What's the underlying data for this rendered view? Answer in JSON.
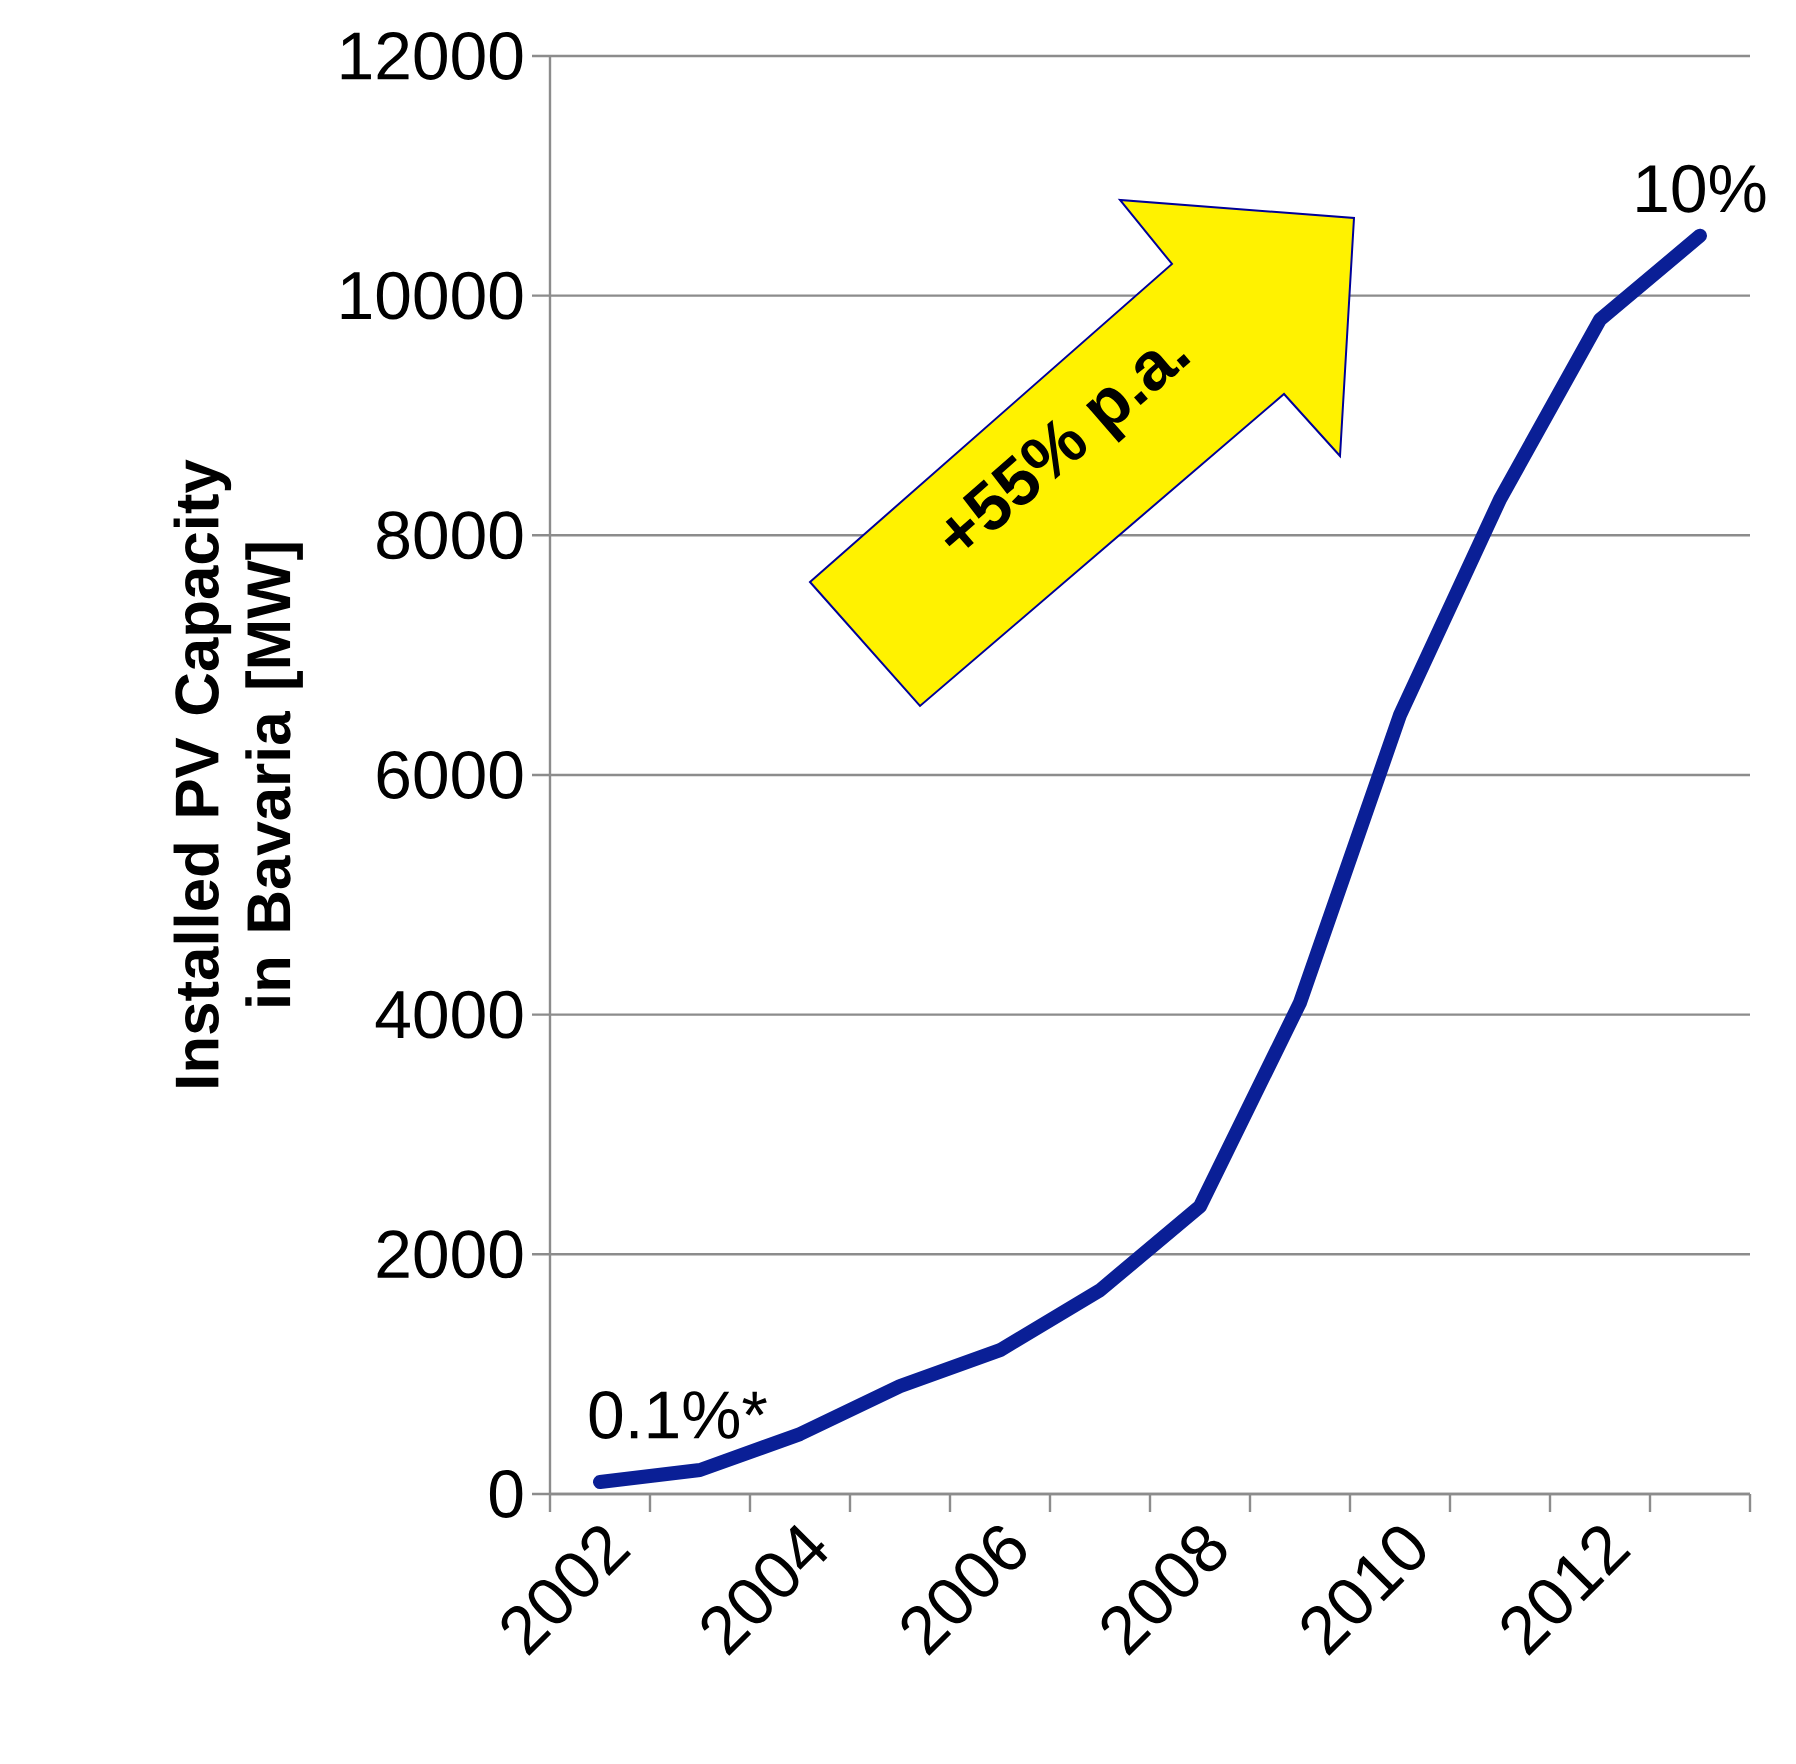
{
  "chart_data": {
    "type": "line",
    "ylabel": "Installed PV Capacity in Bavaria [MW]",
    "categories": [
      "2002",
      null,
      "2004",
      null,
      "2006",
      null,
      "2008",
      null,
      "2010",
      null,
      "2012",
      null
    ],
    "series": [
      {
        "color": "#0a1f96",
        "values": [
          100,
          200,
          500,
          900,
          1200,
          1700,
          2400,
          4100,
          6500,
          8300,
          9800,
          10500
        ]
      }
    ],
    "ylim": [
      0,
      12000
    ],
    "yticks": [
      0,
      2000,
      4000,
      6000,
      8000,
      10000,
      12000
    ],
    "grid": "y",
    "marker": "none",
    "line_style": "solid",
    "annotations": [
      {
        "text": "0.1%*",
        "x": "2002",
        "y": 100
      },
      {
        "text": "10%",
        "y": 10500
      },
      "+55% p.a."
    ]
  }
}
